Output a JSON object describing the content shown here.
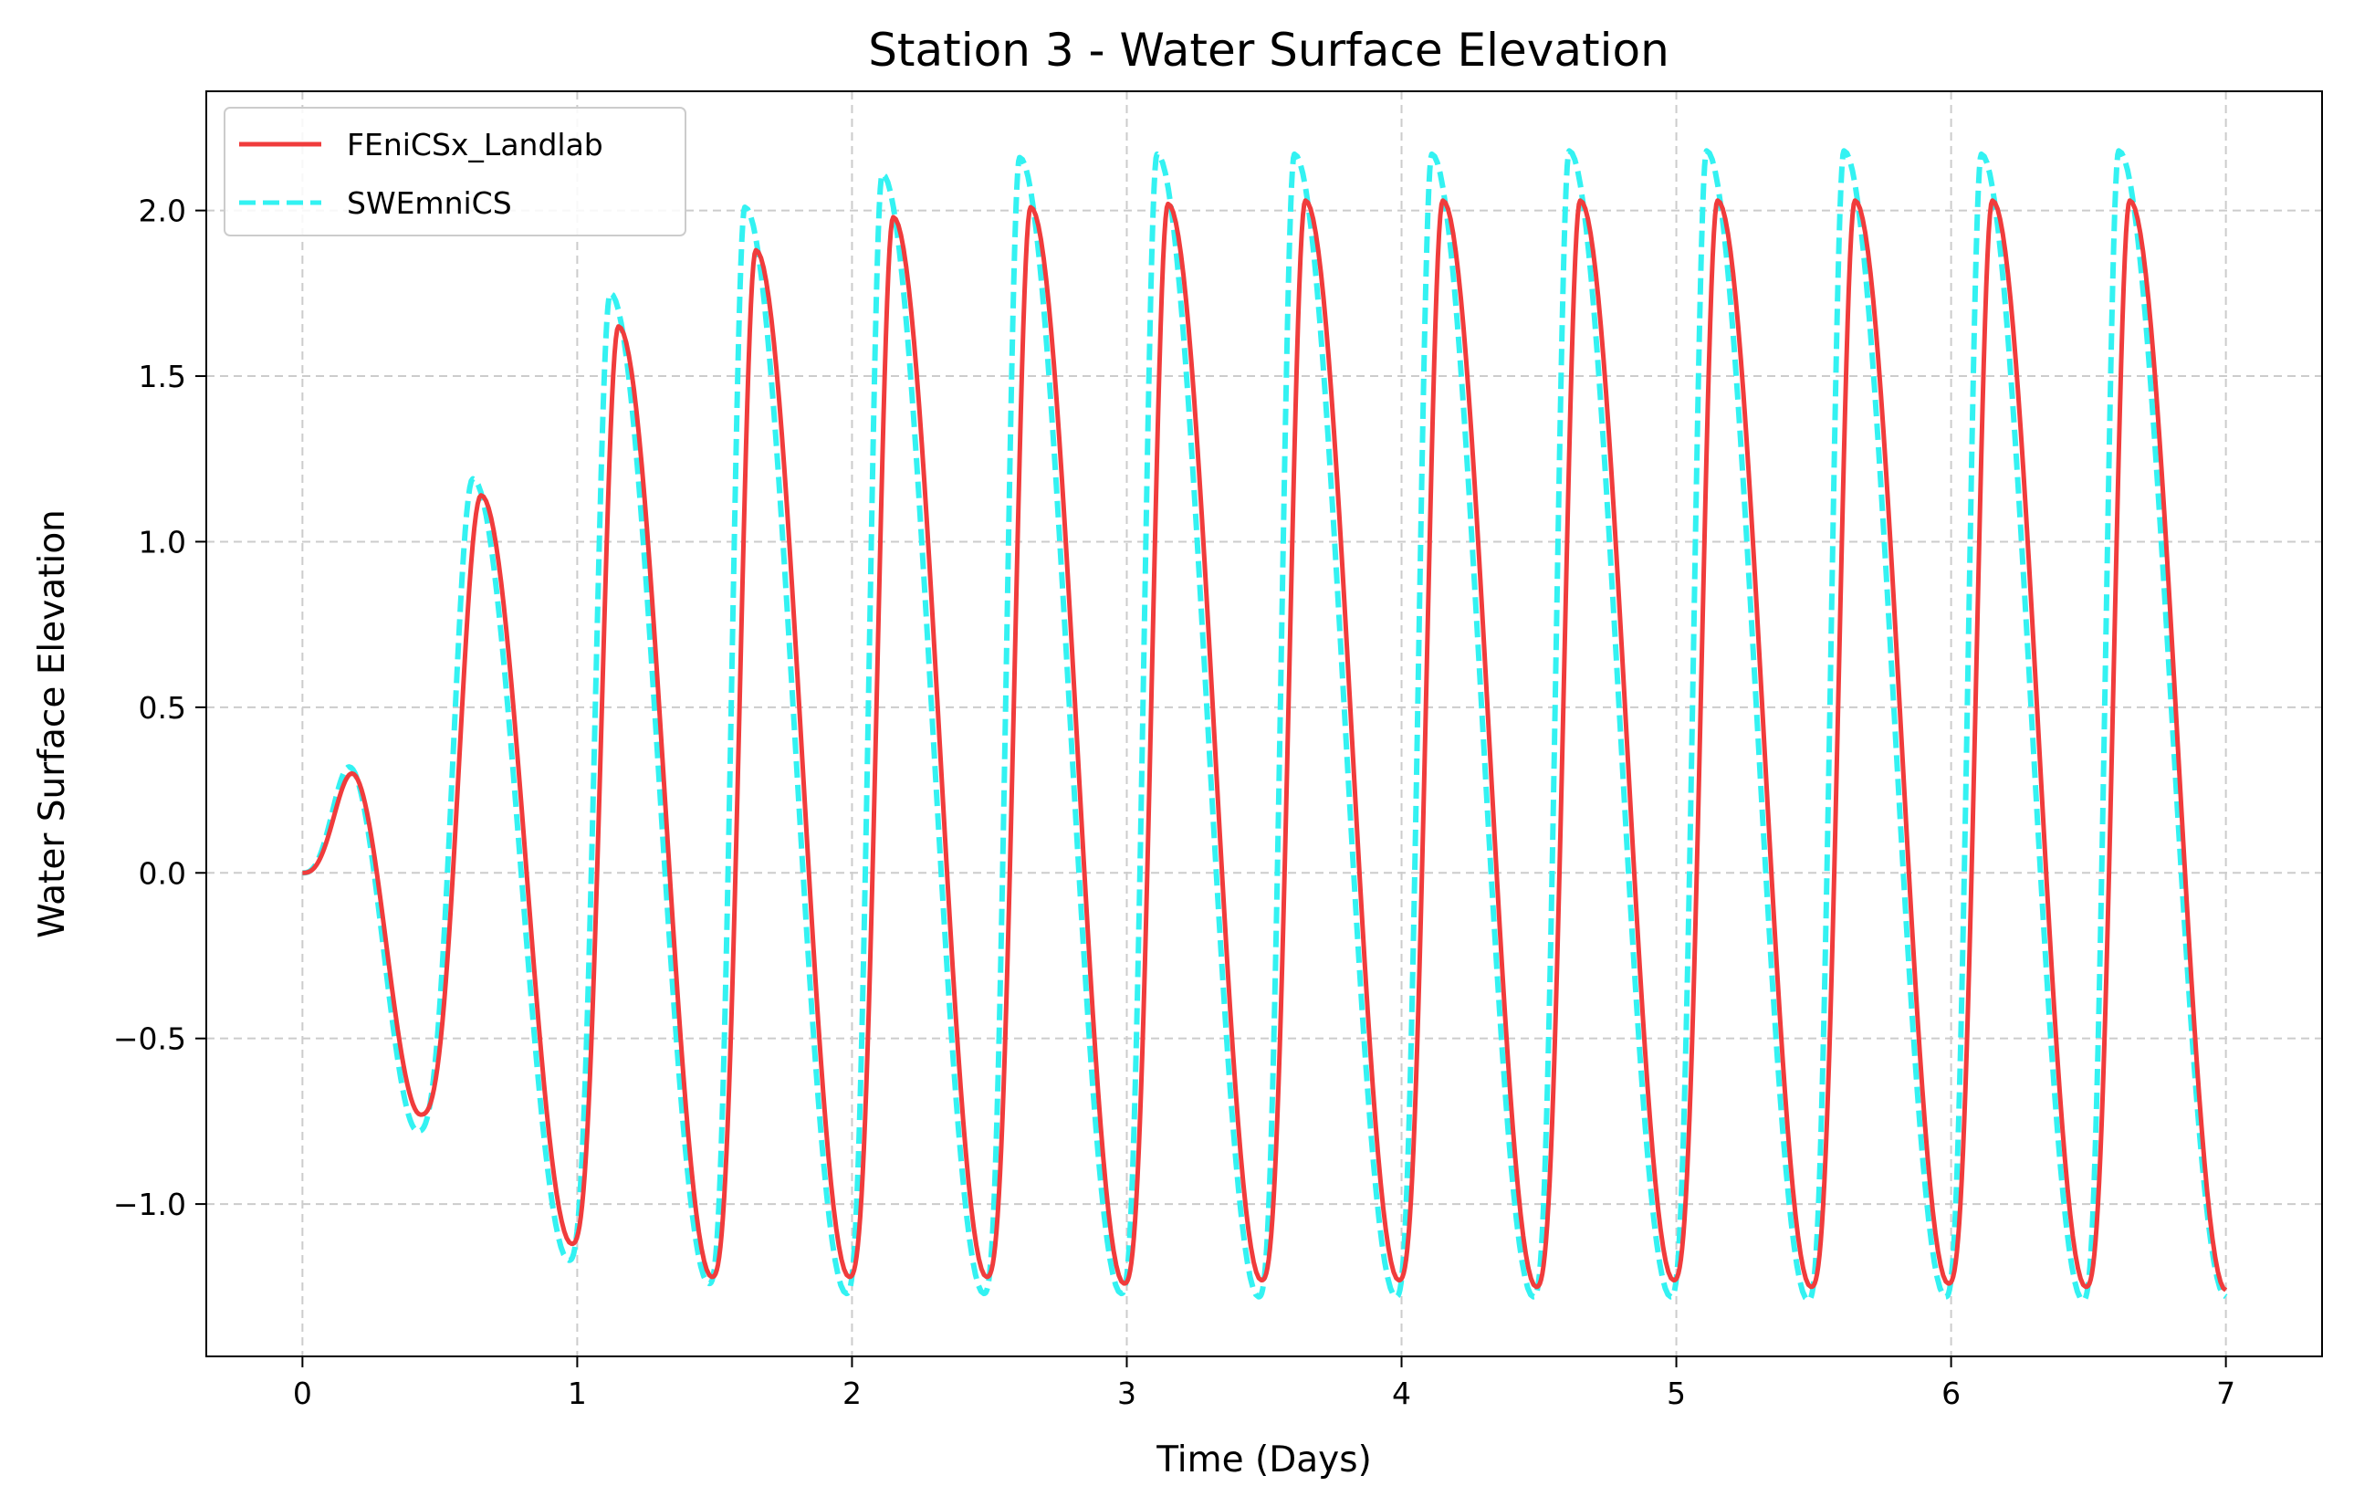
{
  "chart_data": {
    "type": "line",
    "title": "Station 3 - Water Surface Elevation",
    "xlabel": "Time (Days)",
    "ylabel": "Water Surface Elevation",
    "xlim": [
      -0.35,
      7.35
    ],
    "ylim": [
      -1.46,
      2.36
    ],
    "xticks": [
      0,
      1,
      2,
      3,
      4,
      5,
      6,
      7
    ],
    "xtick_labels": [
      "0",
      "1",
      "2",
      "3",
      "4",
      "5",
      "6",
      "7"
    ],
    "yticks": [
      -1.0,
      -0.5,
      0.0,
      0.5,
      1.0,
      1.5,
      2.0
    ],
    "ytick_labels": [
      "−1.0",
      "−0.5",
      "0.0",
      "0.5",
      "1.0",
      "1.5",
      "2.0"
    ],
    "grid": true,
    "legend_position": "top-left",
    "series": [
      {
        "name": "FEniCSx_Landlab",
        "color": "#f03c3c",
        "style": "solid",
        "peaks": [
          [
            0.18,
            0.3
          ],
          [
            0.65,
            1.14
          ],
          [
            1.15,
            1.65
          ],
          [
            1.65,
            1.88
          ],
          [
            2.15,
            1.98
          ],
          [
            2.65,
            2.01
          ],
          [
            3.15,
            2.02
          ],
          [
            3.65,
            2.03
          ],
          [
            4.15,
            2.03
          ],
          [
            4.65,
            2.03
          ],
          [
            5.15,
            2.03
          ],
          [
            5.65,
            2.03
          ],
          [
            6.15,
            2.03
          ],
          [
            6.65,
            2.03
          ]
        ],
        "troughs": [
          [
            0.0,
            0.0
          ],
          [
            0.43,
            -0.73
          ],
          [
            0.98,
            -1.12
          ],
          [
            1.49,
            -1.22
          ],
          [
            1.99,
            -1.22
          ],
          [
            2.49,
            -1.22
          ],
          [
            2.99,
            -1.24
          ],
          [
            3.49,
            -1.23
          ],
          [
            3.99,
            -1.23
          ],
          [
            4.49,
            -1.25
          ],
          [
            4.99,
            -1.23
          ],
          [
            5.49,
            -1.25
          ],
          [
            5.99,
            -1.24
          ],
          [
            6.49,
            -1.25
          ],
          [
            7.0,
            -1.26
          ]
        ]
      },
      {
        "name": "SWEmniCS",
        "color": "#33f2f2",
        "style": "dashed",
        "peaks": [
          [
            0.17,
            0.32
          ],
          [
            0.62,
            1.19
          ],
          [
            1.12,
            1.75
          ],
          [
            1.61,
            2.01
          ],
          [
            2.11,
            2.11
          ],
          [
            2.61,
            2.16
          ],
          [
            3.11,
            2.17
          ],
          [
            3.61,
            2.17
          ],
          [
            4.11,
            2.17
          ],
          [
            4.61,
            2.18
          ],
          [
            5.11,
            2.18
          ],
          [
            5.61,
            2.18
          ],
          [
            6.11,
            2.17
          ],
          [
            6.61,
            2.18
          ]
        ],
        "troughs": [
          [
            0.0,
            0.0
          ],
          [
            0.42,
            -0.78
          ],
          [
            0.97,
            -1.17
          ],
          [
            1.48,
            -1.24
          ],
          [
            1.98,
            -1.27
          ],
          [
            2.48,
            -1.27
          ],
          [
            2.98,
            -1.27
          ],
          [
            3.48,
            -1.28
          ],
          [
            3.98,
            -1.28
          ],
          [
            4.48,
            -1.28
          ],
          [
            4.98,
            -1.28
          ],
          [
            5.48,
            -1.29
          ],
          [
            5.98,
            -1.28
          ],
          [
            6.48,
            -1.29
          ],
          [
            7.0,
            -1.28
          ]
        ]
      }
    ]
  }
}
